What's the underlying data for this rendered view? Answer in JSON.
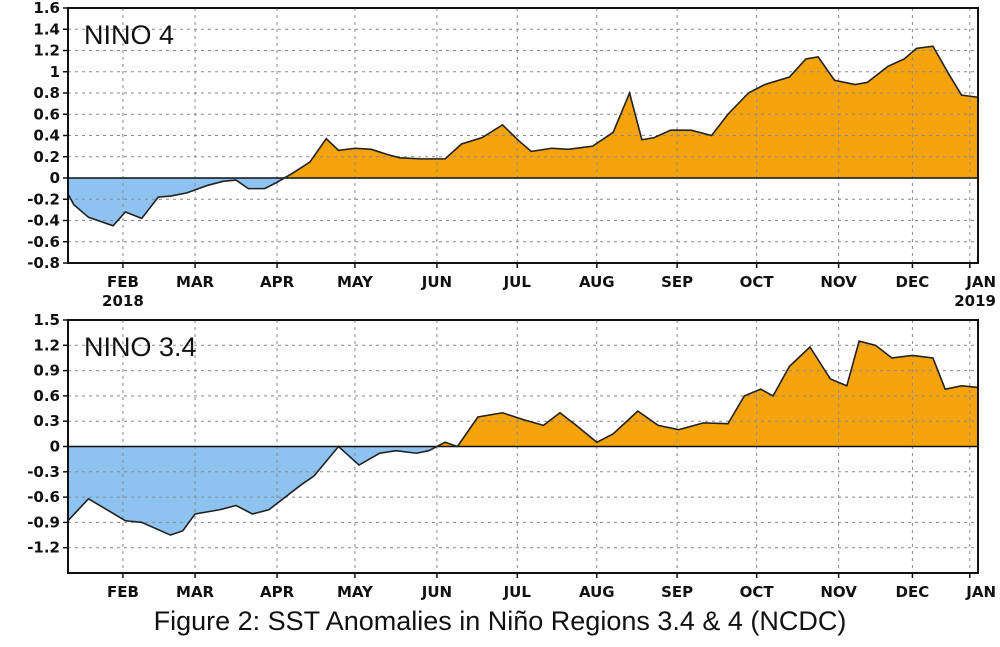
{
  "caption": "Figure 2: SST Anomalies in Niño Regions 3.4 & 4 (NCDC)",
  "colors": {
    "positive": "#f5a30a",
    "negative": "#8ec2f0",
    "line": "#222222",
    "grid": "#8a8a8a"
  },
  "chart_data": [
    {
      "type": "area",
      "title": "NINO 4",
      "xlabel": "",
      "ylabel": "",
      "x_range": [
        0,
        11.1
      ],
      "ylim": [
        -0.8,
        1.6
      ],
      "yticks": [
        "1.6",
        "1.4",
        "1.2",
        "1",
        "0.8",
        "0.6",
        "0.4",
        "0.2",
        "0",
        "-0.2",
        "-0.4",
        "-0.6",
        "-0.8"
      ],
      "ytick_values": [
        1.6,
        1.4,
        1.2,
        1.0,
        0.8,
        0.6,
        0.4,
        0.2,
        0,
        -0.2,
        -0.4,
        -0.6,
        -0.8
      ],
      "xticks": [
        {
          "label": "FEB",
          "sub": "2018",
          "pos": 0.67
        },
        {
          "label": "MAR",
          "sub": "",
          "pos": 1.55
        },
        {
          "label": "APR",
          "sub": "",
          "pos": 2.55
        },
        {
          "label": "MAY",
          "sub": "",
          "pos": 3.5
        },
        {
          "label": "JUN",
          "sub": "",
          "pos": 4.5
        },
        {
          "label": "JUL",
          "sub": "",
          "pos": 5.48
        },
        {
          "label": "AUG",
          "sub": "",
          "pos": 6.45
        },
        {
          "label": "SEP",
          "sub": "",
          "pos": 7.43
        },
        {
          "label": "OCT",
          "sub": "",
          "pos": 8.4
        },
        {
          "label": "NOV",
          "sub": "",
          "pos": 9.4
        },
        {
          "label": "DEC",
          "sub": "",
          "pos": 10.3
        },
        {
          "label": "JAN",
          "sub": "2019",
          "pos": 11.0
        }
      ],
      "grid": true,
      "x": [
        0,
        0.07,
        0.25,
        0.55,
        0.7,
        0.9,
        1.1,
        1.25,
        1.45,
        1.7,
        1.9,
        2.05,
        2.2,
        2.4,
        2.55,
        2.75,
        2.95,
        3.15,
        3.3,
        3.5,
        3.7,
        3.9,
        4.05,
        4.3,
        4.6,
        4.8,
        5.05,
        5.3,
        5.5,
        5.65,
        5.9,
        6.1,
        6.4,
        6.65,
        6.85,
        7.0,
        7.15,
        7.35,
        7.6,
        7.85,
        8.05,
        8.3,
        8.5,
        8.8,
        9.0,
        9.15,
        9.35,
        9.6,
        9.75,
        10.0,
        10.2,
        10.35,
        10.55,
        10.75,
        10.9,
        11.1
      ],
      "values": [
        -0.15,
        -0.25,
        -0.37,
        -0.45,
        -0.32,
        -0.38,
        -0.18,
        -0.17,
        -0.14,
        -0.07,
        -0.03,
        -0.02,
        -0.1,
        -0.1,
        -0.04,
        0.05,
        0.15,
        0.37,
        0.26,
        0.28,
        0.27,
        0.22,
        0.19,
        0.18,
        0.18,
        0.32,
        0.38,
        0.5,
        0.35,
        0.25,
        0.28,
        0.27,
        0.3,
        0.43,
        0.8,
        0.36,
        0.38,
        0.45,
        0.45,
        0.4,
        0.6,
        0.8,
        0.88,
        0.95,
        1.12,
        1.14,
        0.92,
        0.88,
        0.9,
        1.05,
        1.12,
        1.22,
        1.24,
        0.97,
        0.78,
        0.76
      ]
    },
    {
      "type": "area",
      "title": "NINO 3.4",
      "xlabel": "",
      "ylabel": "",
      "x_range": [
        0,
        11.1
      ],
      "ylim": [
        -1.5,
        1.5
      ],
      "yticks": [
        "1.5",
        "1.2",
        "0.9",
        "0.6",
        "0.3",
        "0",
        "-0.3",
        "-0.6",
        "-0.9",
        "-1.2"
      ],
      "ytick_values": [
        1.5,
        1.2,
        0.9,
        0.6,
        0.3,
        0,
        -0.3,
        -0.6,
        -0.9,
        -1.2
      ],
      "xticks": [
        {
          "label": "FEB",
          "sub": "",
          "pos": 0.67
        },
        {
          "label": "MAR",
          "sub": "",
          "pos": 1.55
        },
        {
          "label": "APR",
          "sub": "",
          "pos": 2.55
        },
        {
          "label": "MAY",
          "sub": "",
          "pos": 3.5
        },
        {
          "label": "JUN",
          "sub": "",
          "pos": 4.5
        },
        {
          "label": "JUL",
          "sub": "",
          "pos": 5.48
        },
        {
          "label": "AUG",
          "sub": "",
          "pos": 6.45
        },
        {
          "label": "SEP",
          "sub": "",
          "pos": 7.43
        },
        {
          "label": "OCT",
          "sub": "",
          "pos": 8.4
        },
        {
          "label": "NOV",
          "sub": "",
          "pos": 9.4
        },
        {
          "label": "DEC",
          "sub": "",
          "pos": 10.3
        },
        {
          "label": "JAN",
          "sub": "",
          "pos": 11.0
        }
      ],
      "grid": true,
      "x": [
        0,
        0.25,
        0.7,
        0.9,
        1.25,
        1.4,
        1.55,
        1.85,
        2.05,
        2.25,
        2.45,
        2.85,
        3.0,
        3.3,
        3.55,
        3.8,
        4.0,
        4.25,
        4.4,
        4.6,
        4.75,
        5.0,
        5.3,
        5.55,
        5.8,
        6.0,
        6.2,
        6.45,
        6.65,
        6.95,
        7.2,
        7.45,
        7.75,
        8.05,
        8.25,
        8.45,
        8.6,
        8.8,
        9.05,
        9.3,
        9.5,
        9.65,
        9.85,
        10.05,
        10.3,
        10.55,
        10.7,
        10.9,
        11.1
      ],
      "values": [
        -0.88,
        -0.62,
        -0.88,
        -0.9,
        -1.05,
        -1.0,
        -0.8,
        -0.75,
        -0.7,
        -0.8,
        -0.75,
        -0.45,
        -0.35,
        0.0,
        -0.22,
        -0.08,
        -0.05,
        -0.08,
        -0.05,
        0.05,
        0.0,
        0.35,
        0.4,
        0.32,
        0.25,
        0.4,
        0.25,
        0.05,
        0.15,
        0.42,
        0.25,
        0.2,
        0.28,
        0.27,
        0.6,
        0.68,
        0.6,
        0.95,
        1.18,
        0.8,
        0.72,
        1.25,
        1.2,
        1.05,
        1.08,
        1.05,
        0.68,
        0.72,
        0.7
      ]
    }
  ]
}
